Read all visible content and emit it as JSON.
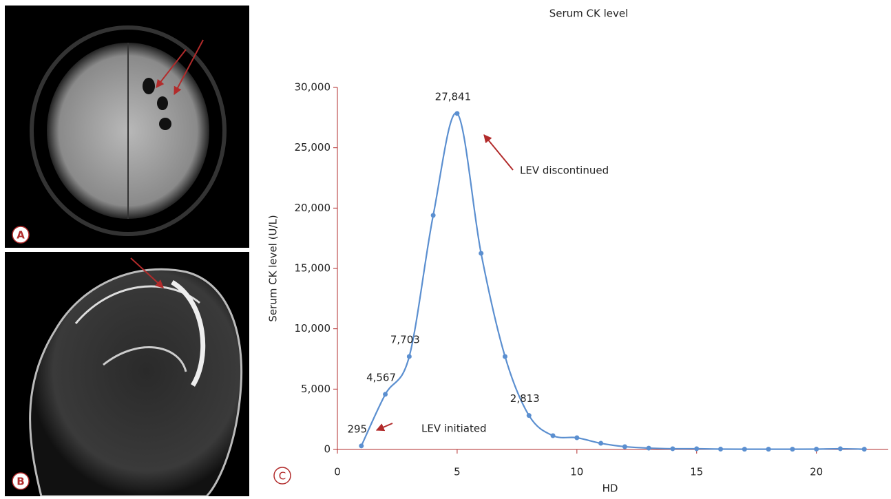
{
  "panel_labels": [
    "A",
    "B",
    "C"
  ],
  "chart_data": {
    "type": "line",
    "title": "Serum CK level",
    "x_label": "HD",
    "y_label": "Serum CK level (U/L)",
    "x": [
      1,
      2,
      3,
      4,
      5,
      6,
      7,
      8,
      9,
      10,
      11,
      12,
      13,
      14,
      15,
      16,
      17,
      18,
      19,
      20,
      21,
      22
    ],
    "series": [
      {
        "name": "Serum CK level",
        "color": "#5b8fd0",
        "values": [
          295,
          4567,
          7703,
          19400,
          27841,
          16250,
          7700,
          2813,
          1140,
          970,
          510,
          230,
          110,
          60,
          60,
          30,
          20,
          20,
          20,
          30,
          60,
          20
        ],
        "value_labels": [
          "295",
          "4,567",
          "7,703",
          null,
          "27,841",
          null,
          null,
          "2,813",
          null,
          null,
          null,
          null,
          null,
          null,
          null,
          null,
          null,
          null,
          null,
          null,
          null,
          null
        ]
      }
    ],
    "xlim": [
      0,
      23
    ],
    "xticks": [
      0,
      5,
      10,
      15,
      20
    ],
    "ylim": [
      0,
      30000
    ],
    "yticks": [
      0,
      {
        "value": 5000,
        "label": "5,000"
      },
      {
        "value": 10000,
        "label": "10,000"
      },
      {
        "value": 15000,
        "label": "15,000"
      },
      {
        "value": 20000,
        "label": "20,000"
      },
      {
        "value": 25000,
        "label": "25,000"
      },
      {
        "value": 30000,
        "label": "30,000"
      }
    ],
    "annotations": [
      "LEV initiated",
      "LEV discontinued"
    ]
  }
}
